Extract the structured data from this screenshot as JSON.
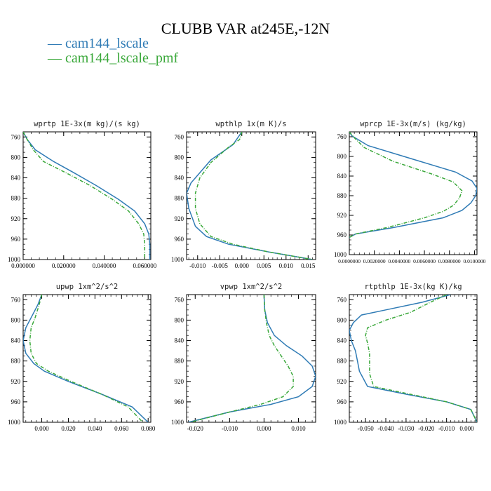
{
  "title": "CLUBB VAR at245E,-12N",
  "legend": [
    {
      "label": "cam144_lscale",
      "color": "#2f7bb5"
    },
    {
      "label": "cam144_lscale_pmf",
      "color": "#3aa83a"
    }
  ],
  "chart_data": [
    {
      "type": "line",
      "title": "wprtp  1E-3x(m kg)/(s kg)",
      "xlim": [
        0.0,
        0.063
      ],
      "ylim": [
        1000,
        750
      ],
      "xticks": [
        "0.000000",
        "0.020000",
        "0.040000",
        "0.060000"
      ],
      "xtick_values": [
        0.0,
        0.02,
        0.04,
        0.06
      ],
      "yticks": [
        760,
        800,
        840,
        880,
        920,
        960,
        1000
      ],
      "series": [
        {
          "name": "cam144_lscale",
          "color": "#2f7bb5",
          "x": [
            0.0,
            0.002,
            0.006,
            0.015,
            0.025,
            0.036,
            0.047,
            0.055,
            0.06,
            0.062,
            0.0625,
            0.0625
          ],
          "y": [
            750,
            765,
            785,
            808,
            830,
            855,
            882,
            905,
            930,
            950,
            970,
            1000
          ]
        },
        {
          "name": "cam144_lscale_pmf",
          "color": "#3aa83a",
          "x": [
            0.0,
            0.002,
            0.005,
            0.01,
            0.021,
            0.033,
            0.044,
            0.052,
            0.057,
            0.0595,
            0.06,
            0.06
          ],
          "y": [
            750,
            765,
            785,
            808,
            830,
            855,
            882,
            905,
            930,
            950,
            970,
            1000
          ]
        }
      ]
    },
    {
      "type": "line",
      "title": "wpthlp  1x(m K)/s",
      "xlim": [
        -0.0125,
        0.0167
      ],
      "ylim": [
        1000,
        750
      ],
      "xticks": [
        "-0.010",
        "-0.005",
        "0.000",
        "0.005",
        "0.010",
        "0.015"
      ],
      "xtick_values": [
        -0.01,
        -0.005,
        0.0,
        0.005,
        0.01,
        0.015
      ],
      "yticks": [
        760,
        800,
        840,
        880,
        920,
        960,
        1000
      ],
      "series": [
        {
          "name": "cam144_lscale",
          "color": "#2f7bb5",
          "x": [
            0.0,
            -0.002,
            -0.007,
            -0.0095,
            -0.0115,
            -0.0125,
            -0.012,
            -0.0105,
            -0.008,
            -0.003,
            0.006,
            0.016
          ],
          "y": [
            750,
            775,
            805,
            830,
            850,
            870,
            900,
            935,
            955,
            970,
            985,
            1000
          ]
        },
        {
          "name": "cam144_lscale_pmf",
          "color": "#3aa83a",
          "x": [
            0.0,
            -0.0005,
            -0.003,
            -0.007,
            -0.0095,
            -0.0105,
            -0.0105,
            -0.0095,
            -0.007,
            -0.002,
            0.006,
            0.016
          ],
          "y": [
            750,
            765,
            780,
            810,
            840,
            870,
            900,
            930,
            955,
            970,
            985,
            1000
          ]
        }
      ]
    },
    {
      "type": "line",
      "title": "wprcp  1E-3x(m/s) (kg/kg)",
      "xlim": [
        0.0,
        0.0102
      ],
      "ylim": [
        1000,
        750
      ],
      "xticks": [
        "0.0000000",
        "0.0020000",
        "0.0040000",
        "0.0060000",
        "0.0080000",
        "0.0100000"
      ],
      "xtick_values": [
        0.0,
        0.002,
        0.004,
        0.006,
        0.008,
        0.01
      ],
      "yticks": [
        760,
        800,
        840,
        880,
        920,
        960,
        1000
      ],
      "series": [
        {
          "name": "cam144_lscale",
          "color": "#2f7bb5",
          "x": [
            0.0,
            0.0002,
            0.0015,
            0.005,
            0.0085,
            0.0098,
            0.0102,
            0.0101,
            0.0097,
            0.009,
            0.0075,
            0.0035,
            0.0005,
            0.0
          ],
          "y": [
            750,
            758,
            778,
            805,
            832,
            850,
            865,
            880,
            895,
            910,
            925,
            945,
            958,
            965
          ]
        },
        {
          "name": "cam144_lscale_pmf",
          "color": "#3aa83a",
          "x": [
            0.0,
            0.0004,
            0.0012,
            0.0035,
            0.0065,
            0.0083,
            0.009,
            0.0088,
            0.0083,
            0.0075,
            0.006,
            0.003,
            0.0005,
            0.0
          ],
          "y": [
            750,
            762,
            782,
            810,
            835,
            852,
            870,
            885,
            900,
            912,
            925,
            945,
            958,
            965
          ]
        }
      ]
    },
    {
      "type": "line",
      "title": "upwp  1xm^2/s^2",
      "xlim": [
        -0.014,
        0.082
      ],
      "ylim": [
        1000,
        750
      ],
      "xticks": [
        "0.000",
        "0.020",
        "0.040",
        "0.060",
        "0.080"
      ],
      "xtick_values": [
        0.0,
        0.02,
        0.04,
        0.06,
        0.08
      ],
      "yticks": [
        760,
        800,
        840,
        880,
        920,
        960,
        1000
      ],
      "series": [
        {
          "name": "cam144_lscale",
          "color": "#2f7bb5",
          "x": [
            0.0,
            -0.003,
            -0.008,
            -0.012,
            -0.014,
            -0.012,
            -0.006,
            0.002,
            0.02,
            0.045,
            0.068,
            0.08
          ],
          "y": [
            750,
            770,
            795,
            815,
            840,
            865,
            885,
            900,
            920,
            945,
            970,
            1000
          ]
        },
        {
          "name": "cam144_lscale_pmf",
          "color": "#3aa83a",
          "x": [
            0.0,
            -0.002,
            -0.005,
            -0.008,
            -0.009,
            -0.008,
            -0.004,
            0.005,
            0.022,
            0.045,
            0.065,
            0.076
          ],
          "y": [
            750,
            770,
            795,
            815,
            840,
            865,
            885,
            900,
            920,
            945,
            970,
            1000
          ]
        }
      ]
    },
    {
      "type": "line",
      "title": "vpwp  1xm^2/s^2",
      "xlim": [
        -0.0225,
        0.015
      ],
      "ylim": [
        1000,
        750
      ],
      "xticks": [
        "-0.020",
        "-0.010",
        "0.000",
        "0.010"
      ],
      "xtick_values": [
        -0.02,
        -0.01,
        0.0,
        0.01
      ],
      "yticks": [
        760,
        800,
        840,
        880,
        920,
        960,
        1000
      ],
      "series": [
        {
          "name": "cam144_lscale",
          "color": "#2f7bb5",
          "x": [
            0.0,
            0.0002,
            0.001,
            0.003,
            0.0065,
            0.011,
            0.014,
            0.015,
            0.014,
            0.01,
            0.002,
            -0.01,
            -0.022
          ],
          "y": [
            750,
            780,
            805,
            830,
            850,
            870,
            890,
            910,
            930,
            950,
            965,
            980,
            1000
          ]
        },
        {
          "name": "cam144_lscale_pmf",
          "color": "#3aa83a",
          "x": [
            0.0,
            0.0002,
            0.0007,
            0.0015,
            0.003,
            0.005,
            0.007,
            0.0085,
            0.0085,
            0.0055,
            -0.001,
            -0.01,
            -0.0215
          ],
          "y": [
            750,
            780,
            805,
            830,
            850,
            870,
            890,
            910,
            930,
            950,
            965,
            980,
            1000
          ]
        }
      ]
    },
    {
      "type": "line",
      "title": "rtpthlp  1E-3x(kg K)/kg",
      "xlim": [
        -0.058,
        0.005
      ],
      "ylim": [
        1000,
        750
      ],
      "xticks": [
        "-0.050",
        "-0.040",
        "-0.030",
        "-0.020",
        "-0.010",
        "0.000"
      ],
      "xtick_values": [
        -0.05,
        -0.04,
        -0.03,
        -0.02,
        -0.01,
        0.0
      ],
      "yticks": [
        760,
        800,
        840,
        880,
        920,
        960,
        1000
      ],
      "series": [
        {
          "name": "cam144_lscale",
          "color": "#2f7bb5",
          "x": [
            -0.008,
            -0.022,
            -0.04,
            -0.052,
            -0.056,
            -0.058,
            -0.057,
            -0.055,
            -0.054,
            -0.053,
            -0.049,
            -0.03,
            -0.01,
            0.002,
            0.005
          ],
          "y": [
            750,
            765,
            780,
            790,
            805,
            820,
            840,
            860,
            880,
            900,
            930,
            945,
            960,
            975,
            1000
          ]
        },
        {
          "name": "cam144_lscale_pmf",
          "color": "#3aa83a",
          "x": [
            -0.01,
            -0.018,
            -0.028,
            -0.04,
            -0.049,
            -0.05,
            -0.049,
            -0.048,
            -0.048,
            -0.048,
            -0.046,
            -0.028,
            -0.01,
            0.002,
            0.005
          ],
          "y": [
            750,
            765,
            785,
            800,
            815,
            830,
            845,
            865,
            885,
            905,
            930,
            945,
            960,
            975,
            1000
          ]
        }
      ]
    }
  ]
}
